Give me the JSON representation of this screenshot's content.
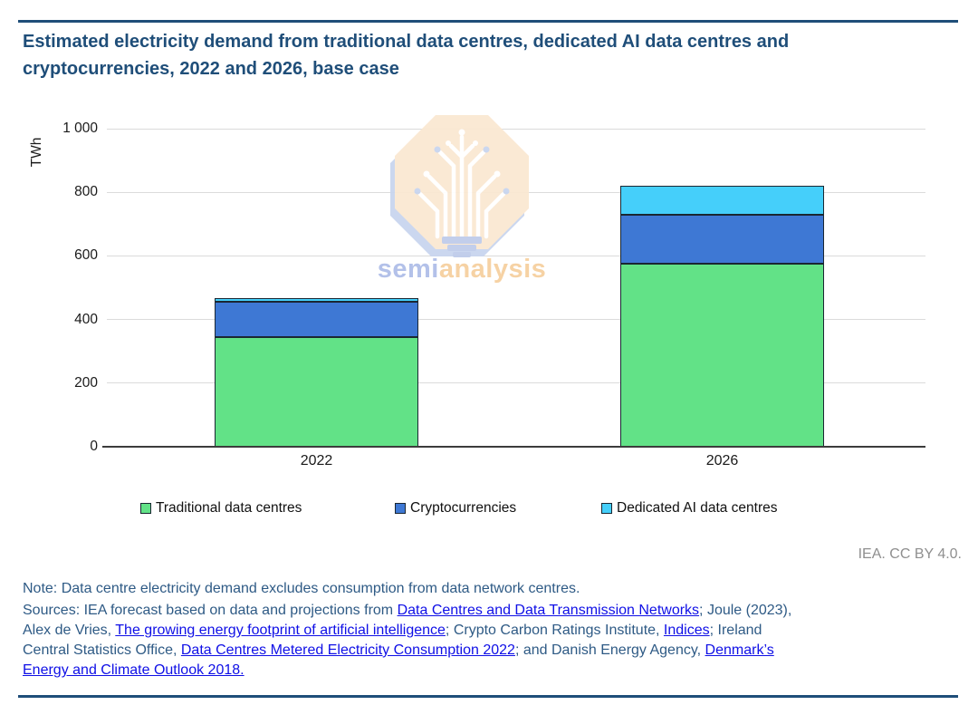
{
  "title": {
    "text": "Estimated electricity demand from traditional data centres, dedicated AI data centres and cryptocurrencies, 2022 and 2026, base case"
  },
  "chart_data": {
    "type": "bar",
    "stacked": true,
    "title": "Estimated electricity demand from traditional data centres, dedicated AI data centres and cryptocurrencies, 2022 and 2026, base case",
    "units": "TWh",
    "ylabel": "TWh",
    "ylim": [
      0,
      1000
    ],
    "yticks": [
      0,
      200,
      400,
      600,
      800,
      1000
    ],
    "ytick_labels": [
      "0",
      "200",
      "400",
      "600",
      "800",
      "1 000"
    ],
    "categories": [
      "2022",
      "2026"
    ],
    "series": [
      {
        "name": "Traditional data centres",
        "color": "#62E287",
        "values": [
          345,
          575
        ]
      },
      {
        "name": "Cryptocurrencies",
        "color": "#3E78D4",
        "values": [
          110,
          155
        ]
      },
      {
        "name": "Dedicated AI data centres",
        "color": "#45CFFA",
        "values": [
          5,
          90
        ]
      }
    ],
    "grid": "horizontal",
    "legend_position": "bottom",
    "bar_border_color": "#1A2732"
  },
  "watermark": {
    "brand_left": "semi",
    "brand_right": "analysis"
  },
  "attribution": "IEA. CC BY 4.0.",
  "note": "Note: Data centre electricity demand excludes consumption from data network centres.",
  "sources_lines": [
    [
      {
        "t": "Sources: IEA forecast based on data and projections from "
      },
      {
        "t": "Data Centres and Data Transmission Networks",
        "link": true
      },
      {
        "t": "; Joule (2023),"
      }
    ],
    [
      {
        "t": "Alex de Vries, "
      },
      {
        "t": "The growing energy footprint of artificial intelligence",
        "link": true
      },
      {
        "t": "; Crypto Carbon Ratings Institute, "
      },
      {
        "t": "Indices",
        "link": true
      },
      {
        "t": "; Ireland"
      }
    ],
    [
      {
        "t": "Central Statistics Office, "
      },
      {
        "t": "Data Centres Metered Electricity Consumption 2022",
        "link": true
      },
      {
        "t": "; and Danish Energy Agency, "
      },
      {
        "t": "Denmark’s",
        "link": true
      }
    ],
    [
      {
        "t": "Energy and Climate Outlook 2018.",
        "link": true
      }
    ]
  ],
  "colors": {
    "accent_rule": "#1F4E79",
    "title_text": "#1F4E79",
    "body_text": "#2E5A85",
    "link": "#0F0FE6",
    "attribution_gray": "#8F8F8F",
    "gridline": "#DBDBDB",
    "axis_line": "#3C3C3C",
    "watermark_octagon": "#FAE8D2",
    "watermark_shadow": "#C9D5EF",
    "watermark_semi": "#AFBEE8",
    "watermark_analysis": "#F6D0A0"
  }
}
